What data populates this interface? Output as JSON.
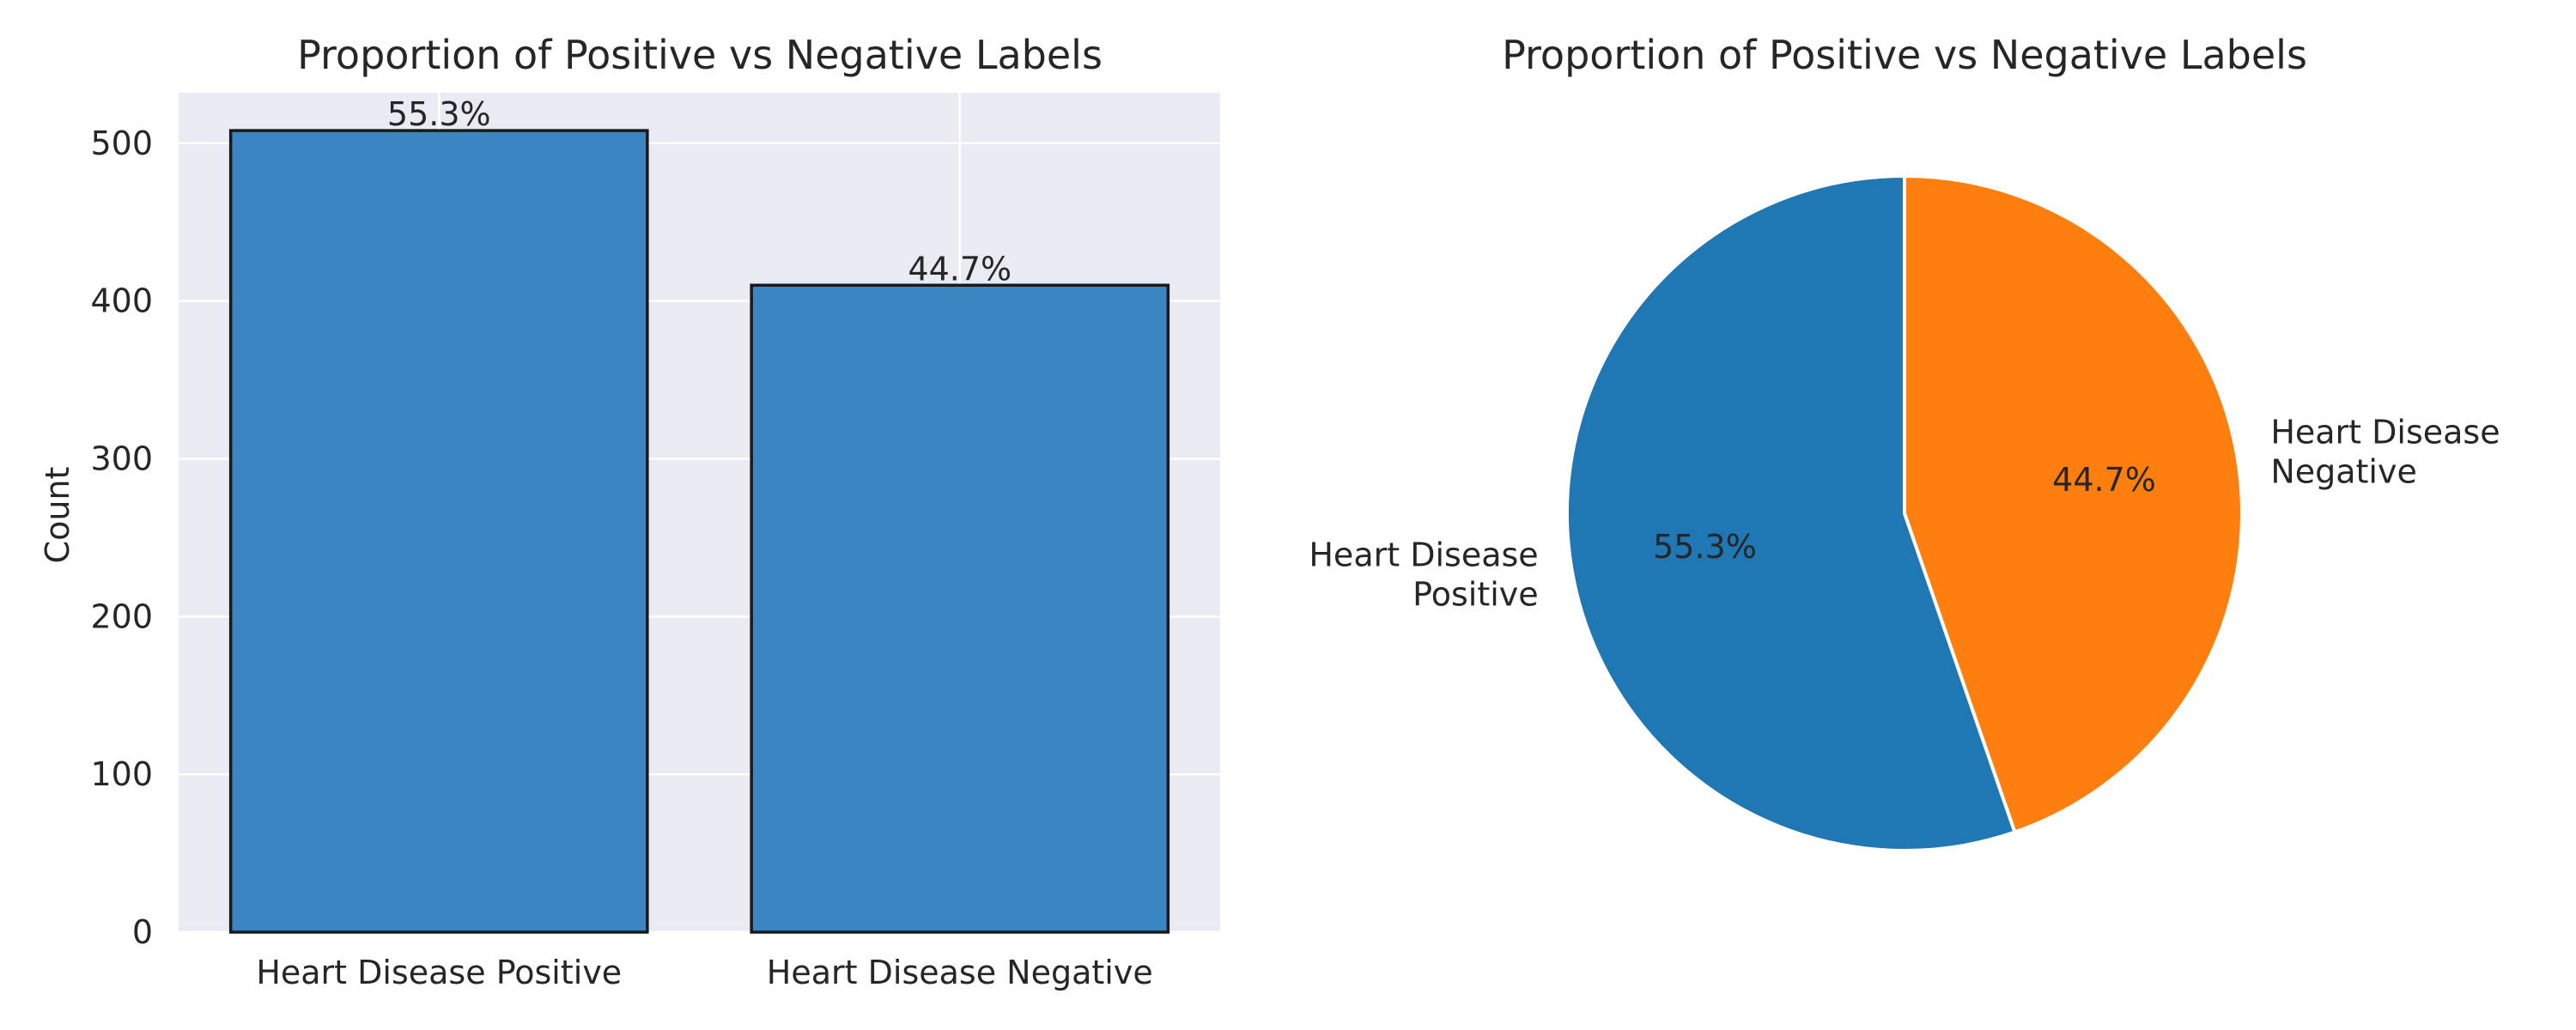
{
  "chart_data": [
    {
      "type": "bar",
      "title": "Proportion of Positive vs Negative Labels",
      "xlabel": "",
      "ylabel": "Count",
      "categories": [
        "Heart Disease Positive",
        "Heart Disease Negative"
      ],
      "values": [
        508,
        410
      ],
      "data_labels": [
        "55.3%",
        "44.7%"
      ],
      "ylim": [
        0,
        532
      ],
      "yticks": [
        0,
        100,
        200,
        300,
        400,
        500
      ],
      "grid": true,
      "colors": {
        "bar": "#3a86c2",
        "edge": "#1a1a1a",
        "background": "#eaeaf2",
        "grid": "#ffffff"
      }
    },
    {
      "type": "pie",
      "title": "Proportion of Positive vs Negative Labels",
      "slices": [
        {
          "label_lines": [
            "Heart Disease",
            "Positive"
          ],
          "value": 55.3,
          "pct_label": "55.3%",
          "color": "#1f77b4"
        },
        {
          "label_lines": [
            "Heart Disease",
            "Negative"
          ],
          "value": 44.7,
          "pct_label": "44.7%",
          "color": "#ff7f0e"
        }
      ],
      "start_angle_deg": 90,
      "direction": "counterclockwise",
      "edge_color": "#ffffff"
    }
  ]
}
